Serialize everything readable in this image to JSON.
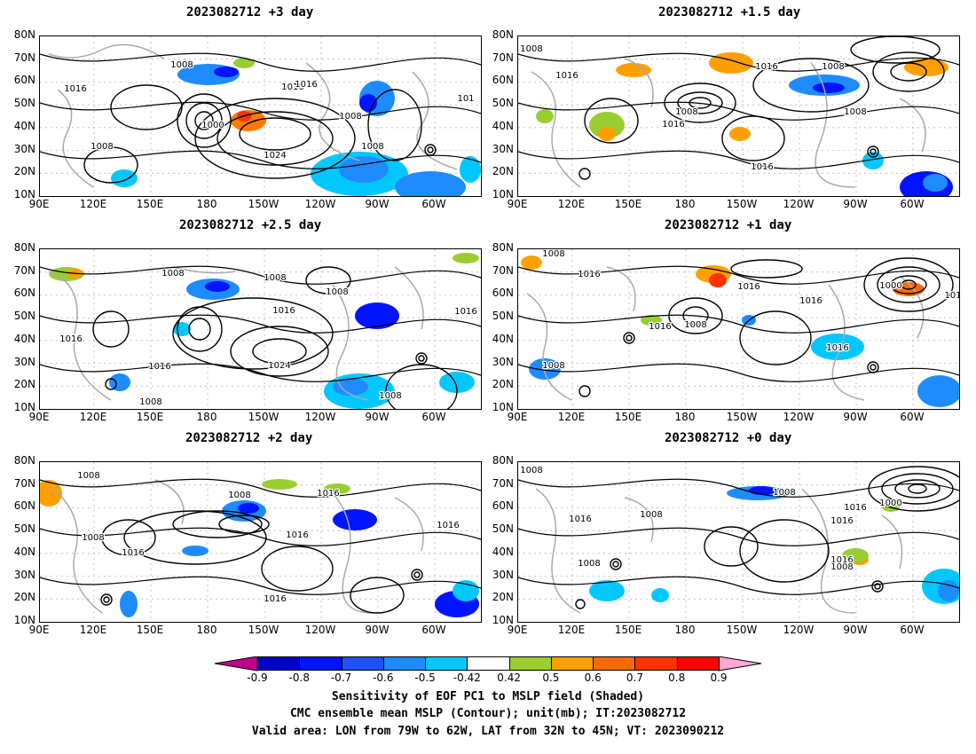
{
  "panels": [
    {
      "title": "2023082712 +3 day",
      "contours": [
        "1008",
        "1016",
        "1016",
        "1008",
        "1024",
        "1000",
        "1016",
        "1008",
        "1008",
        "101"
      ]
    },
    {
      "title": "2023082712 +1.5 day",
      "contours": [
        "1008",
        "1016",
        "1008",
        "1016",
        "1008",
        "1016",
        "1016",
        "1008"
      ]
    },
    {
      "title": "2023082712 +2.5 day",
      "contours": [
        "1008",
        "1016",
        "1016",
        "1016",
        "1024",
        "1008",
        "1016",
        "1008",
        "1008",
        "1008"
      ]
    },
    {
      "title": "2023082712 +1 day",
      "contours": [
        "1008",
        "1016",
        "1008",
        "1016",
        "1016",
        "1000",
        "1016",
        "1008",
        "1016",
        "101"
      ]
    },
    {
      "title": "2023082712 +2 day",
      "contours": [
        "1008",
        "1016",
        "1008",
        "1016",
        "1016",
        "1016",
        "1008",
        "1016",
        "1016"
      ]
    },
    {
      "title": "2023082712 +0 day",
      "contours": [
        "1008",
        "1016",
        "1008",
        "1008",
        "1016",
        "1000",
        "1016",
        "1008",
        "1016",
        "1008"
      ]
    }
  ],
  "axes": {
    "lat_labels": [
      "80N",
      "70N",
      "60N",
      "50N",
      "40N",
      "30N",
      "20N",
      "10N"
    ],
    "lon_labels": [
      "90E",
      "120E",
      "150E",
      "180",
      "150W",
      "120W",
      "90W",
      "60W"
    ]
  },
  "colorbar": {
    "labels": [
      "-0.9",
      "-0.8",
      "-0.7",
      "-0.6",
      "-0.5",
      "-0.42",
      "0.42",
      "0.5",
      "0.6",
      "0.7",
      "0.8",
      "0.9"
    ],
    "colors": [
      "#0000c8",
      "#0014ff",
      "#1f4fff",
      "#1e8cff",
      "#00c8ff",
      "#ffffff",
      "#9acd32",
      "#ff9f00",
      "#ff6a00",
      "#ff3300",
      "#ff0000"
    ],
    "end_low_color": "#c0008c",
    "end_high_color": "#ffaad0"
  },
  "caption": {
    "line1": "Sensitivity of EOF PC1 to MSLP field (Shaded)",
    "line2": "CMC ensemble mean MSLP (Contour); unit(mb); IT:2023082712",
    "line3": "Valid area: LON from 79W to 62W, LAT from 32N to 45N; VT: 2023090212"
  }
}
